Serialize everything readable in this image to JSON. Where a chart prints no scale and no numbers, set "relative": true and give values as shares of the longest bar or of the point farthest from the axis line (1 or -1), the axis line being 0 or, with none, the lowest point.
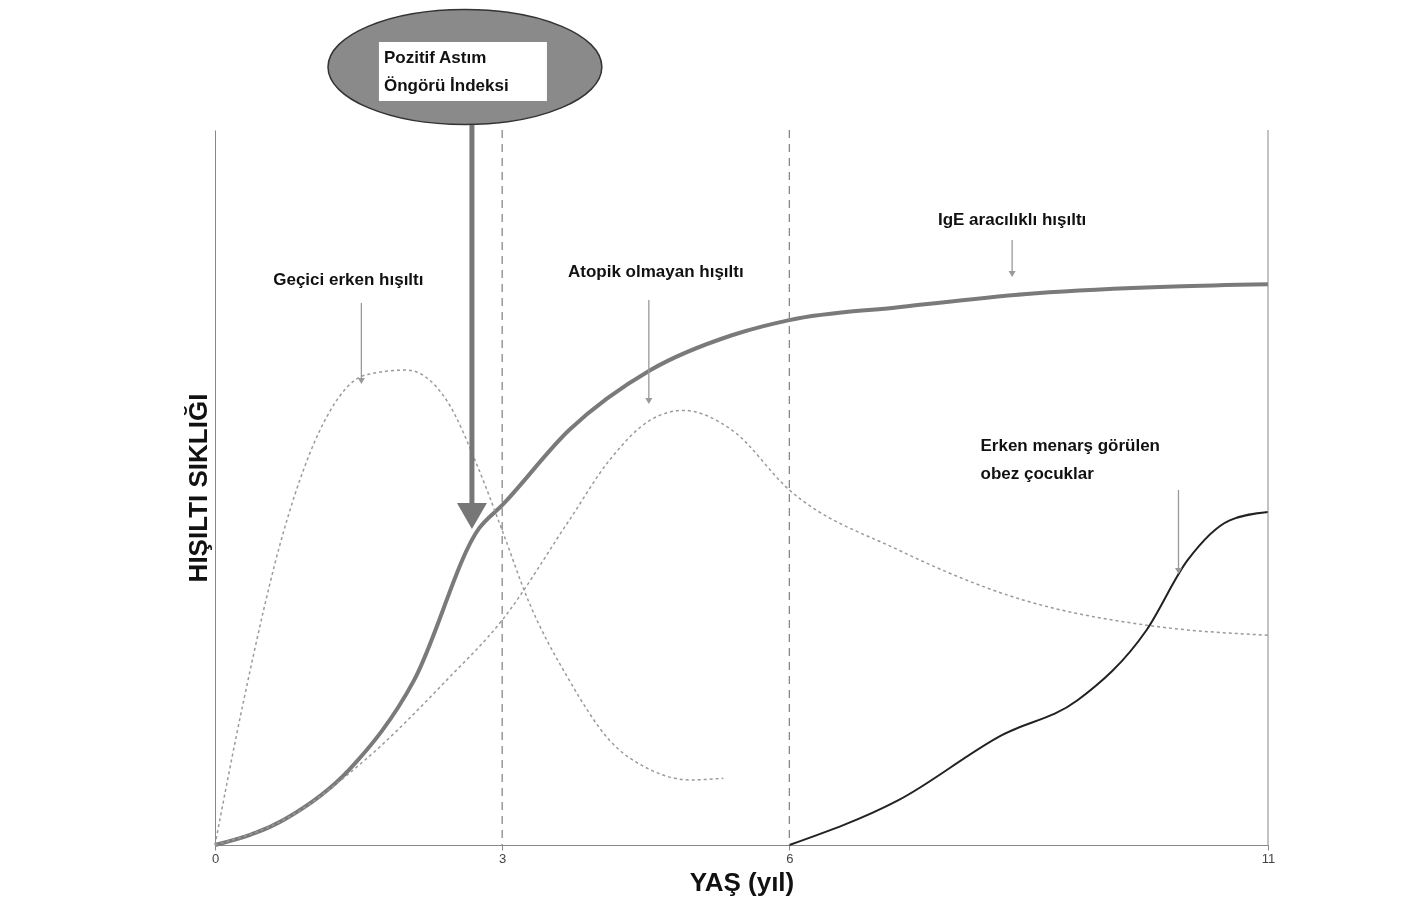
{
  "chart_data": {
    "type": "line",
    "relative": true,
    "xlabel": "YAŞ (yıl)",
    "ylabel": "HIŞILTI SIKLIĞI",
    "xlim": [
      0,
      11
    ],
    "xticks": [
      0,
      3,
      6,
      11
    ],
    "grid": false,
    "marker": "none",
    "series": [
      {
        "color": "#7a7a7a",
        "line_style": "solid",
        "x": [
          0,
          0.72,
          1.4,
          2.08,
          2.76,
          3.0,
          3.7,
          4.55,
          5.4,
          6,
          7.14,
          8.58,
          10.02,
          11
        ],
        "values": [
          0,
          0.045,
          0.134,
          0.294,
          0.565,
          0.606,
          0.74,
          0.847,
          0.909,
          0.936,
          0.959,
          0.984,
          0.996,
          1
        ]
      },
      {
        "color": "#9a9a9a",
        "line_style": "dotted",
        "x": [
          0,
          0.3,
          0.72,
          1.15,
          1.57,
          2.0,
          2.42,
          2.76,
          3.0,
          3.27,
          3.7,
          4.12,
          4.55,
          4.97,
          5.31
        ],
        "values": [
          0,
          0.258,
          0.561,
          0.758,
          0.838,
          0.847,
          0.793,
          0.668,
          0.561,
          0.437,
          0.294,
          0.187,
          0.134,
          0.116,
          0.119
        ]
      },
      {
        "color": "#9a9a9a",
        "line_style": "dotted",
        "x": [
          0,
          0.72,
          1.57,
          2.42,
          3.0,
          3.7,
          4.12,
          4.55,
          4.89,
          5.4,
          6,
          7.14,
          8.44,
          9.73,
          11
        ],
        "values": [
          0,
          0.045,
          0.152,
          0.294,
          0.401,
          0.579,
          0.686,
          0.758,
          0.775,
          0.74,
          0.633,
          0.526,
          0.437,
          0.392,
          0.374
        ]
      },
      {
        "color": "#222222",
        "line_style": "solid",
        "x": [
          6,
          7.14,
          8.22,
          9.01,
          9.73,
          10.16,
          10.6,
          11
        ],
        "values": [
          0,
          0.08,
          0.196,
          0.258,
          0.383,
          0.508,
          0.579,
          0.594
        ]
      }
    ],
    "ref_lines": [
      {
        "axis": "x",
        "value": 3,
        "color": "#888888",
        "line_style": "dashed"
      },
      {
        "axis": "x",
        "value": 6,
        "color": "#888888",
        "line_style": "dashed"
      }
    ],
    "annotations": [
      "Geçici erken hışıltı",
      "Atopik olmayan hışıltı",
      "IgE aracılıklı hışıltı",
      "Erken menarş görülen\nobez çocuklar",
      "Pozitif Astım\nÖngörü İndeksi"
    ]
  }
}
